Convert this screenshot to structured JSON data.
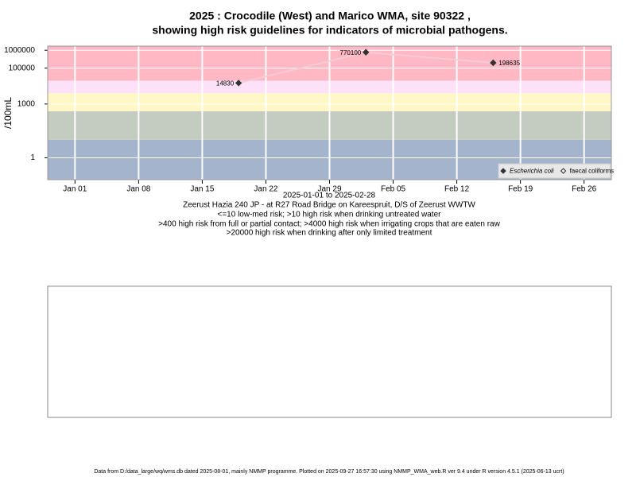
{
  "chart_data": {
    "type": "line",
    "title": "2025 : Crocodile (West) and Marico WMA, site 90322 ,",
    "subtitle": "showing high risk guidelines for indicators of microbial pathogens.",
    "y_label": "/100mL",
    "x_label": "2025-01-01 to 2025-02-28",
    "site": "Zeerust Hazia 240 JP - at R27 Road Bridge on Kareespruit, D/S of Zeerust WWTW",
    "notes": [
      "<=10 low-med risk; >10 high risk when drinking untreated water",
      ">400 high risk from full or partial contact; >4000 high risk when irrigating crops that are eaten raw",
      ">20000 high risk when drinking after only limited treatment"
    ],
    "footer": "Data from D:/data_large/wq/wms.db dated 2025-08-01, mainly NMMP programme. Plotted on 2025-09-27 16:57:30 using NMMP_WMA_web.R ver 9.4 under R version 4.5.1 (2025-06-13 ucrt)",
    "x": [
      "2025-01-19",
      "2025-02-02",
      "2025-02-16"
    ],
    "series": [
      {
        "name": "Escherichia coli",
        "color": "#333333",
        "line_color": "#f2cdd5",
        "values": [
          14830,
          770100,
          198635
        ]
      },
      {
        "name": "faecal coliforms",
        "color": "#333333",
        "values": [
          null,
          null,
          null
        ]
      }
    ],
    "xlim": [
      "2024-12-29",
      "2025-03-01"
    ],
    "xticks": [
      {
        "value": "2025-01-01",
        "label": "Jan 01"
      },
      {
        "value": "2025-01-08",
        "label": "Jan 08"
      },
      {
        "value": "2025-01-15",
        "label": "Jan 15"
      },
      {
        "value": "2025-01-22",
        "label": "Jan 22"
      },
      {
        "value": "2025-01-29",
        "label": "Jan 29"
      },
      {
        "value": "2025-02-05",
        "label": "Feb 05"
      },
      {
        "value": "2025-02-12",
        "label": "Feb 12"
      },
      {
        "value": "2025-02-19",
        "label": "Feb 19"
      },
      {
        "value": "2025-02-26",
        "label": "Feb 26"
      }
    ],
    "ylim": [
      0.06,
      1700000
    ],
    "yticks": [
      1,
      1000,
      100000,
      1000000
    ],
    "log_y": true,
    "grid": true,
    "legend": "bottom-right",
    "band_breaks": [
      10,
      400,
      4000,
      20000
    ],
    "band_colors": [
      "#a4b4cc",
      "#c4ccc1",
      "#fff8c6",
      "#fde1f9",
      "#ffb8c4"
    ]
  }
}
